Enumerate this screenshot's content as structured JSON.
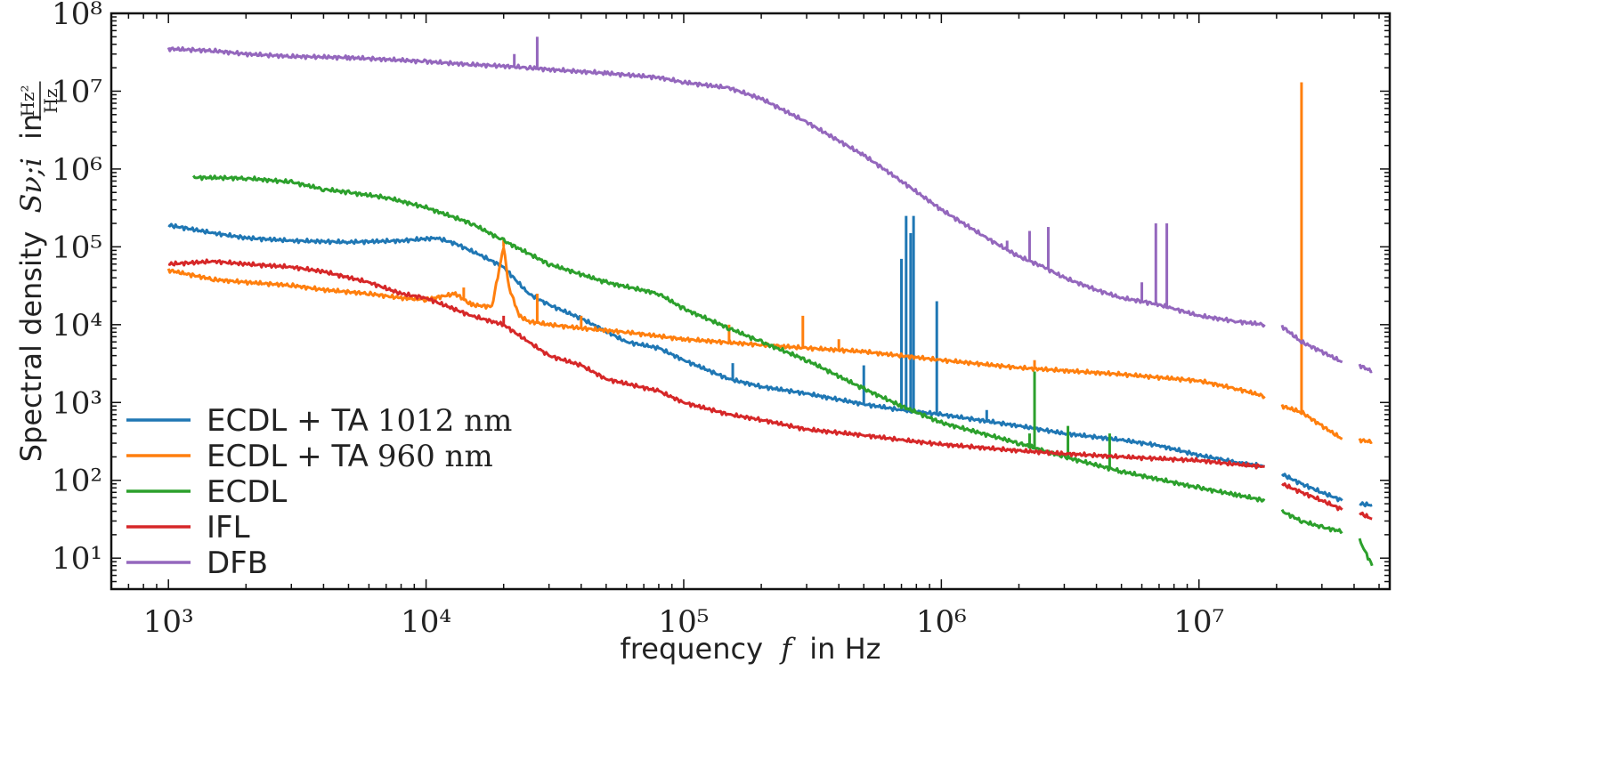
{
  "chart_data": {
    "type": "line",
    "title": "",
    "xlabel": "frequency",
    "xlabel_symbol": "f",
    "xlabel_unit": "in Hz",
    "ylabel": "Spectral density",
    "ylabel_symbol": "Sν;i",
    "ylabel_unit_prefix": "in",
    "ylabel_unit_num": "Hz²",
    "ylabel_unit_den": "Hz",
    "xscale": "log",
    "yscale": "log",
    "xlim": [
      600,
      55000000
    ],
    "ylim": [
      4,
      100000000
    ],
    "grid": false,
    "legend_position": "bottom-left",
    "x_ticks": [
      {
        "value": 1000,
        "label": "10³"
      },
      {
        "value": 10000,
        "label": "10⁴"
      },
      {
        "value": 100000,
        "label": "10⁵"
      },
      {
        "value": 1000000,
        "label": "10⁶"
      },
      {
        "value": 10000000,
        "label": "10⁷"
      }
    ],
    "y_ticks": [
      {
        "value": 10,
        "label": "10¹"
      },
      {
        "value": 100,
        "label": "10²"
      },
      {
        "value": 1000,
        "label": "10³"
      },
      {
        "value": 10000,
        "label": "10⁴"
      },
      {
        "value": 100000,
        "label": "10⁵"
      },
      {
        "value": 1000000,
        "label": "10⁶"
      },
      {
        "value": 10000000,
        "label": "10⁷"
      },
      {
        "value": 100000000,
        "label": "10⁸"
      }
    ],
    "series": [
      {
        "name": "ECDL + TA 1012 nm",
        "legend_text": "ECDL + TA",
        "legend_value": "1012 nm",
        "color": "#1f77b4",
        "segments": [
          [
            [
              1000,
              190000
            ],
            [
              1500,
              150000
            ],
            [
              2000,
              130000
            ],
            [
              3000,
              120000
            ],
            [
              5000,
              115000
            ],
            [
              8000,
              120000
            ],
            [
              11000,
              130000
            ],
            [
              13000,
              110000
            ],
            [
              16000,
              80000
            ],
            [
              20000,
              55000
            ],
            [
              25000,
              25000
            ],
            [
              30000,
              18000
            ],
            [
              40000,
              12000
            ],
            [
              60000,
              6000
            ],
            [
              80000,
              5000
            ],
            [
              100000,
              3500
            ],
            [
              150000,
              2000
            ],
            [
              200000,
              1600
            ],
            [
              300000,
              1300
            ],
            [
              500000,
              950
            ],
            [
              700000,
              800
            ],
            [
              1000000,
              700
            ],
            [
              2000000,
              500
            ],
            [
              3000000,
              400
            ],
            [
              5000000,
              330
            ],
            [
              7000000,
              280
            ],
            [
              10000000,
              210
            ],
            [
              14000000,
              170
            ],
            [
              18000000,
              150
            ]
          ],
          [
            [
              21000000,
              120
            ],
            [
              25000000,
              90
            ],
            [
              30000000,
              70
            ],
            [
              36000000,
              55
            ]
          ],
          [
            [
              42000000,
              50
            ],
            [
              47000000,
              48
            ]
          ]
        ],
        "spikes": [
          [
            500000,
            3000
          ],
          [
            700000,
            70000
          ],
          [
            730000,
            250000
          ],
          [
            760000,
            150000
          ],
          [
            780000,
            250000
          ],
          [
            960000,
            20000
          ],
          [
            155000,
            3200
          ],
          [
            1500000,
            800
          ]
        ]
      },
      {
        "name": "ECDL + TA 960 nm",
        "legend_text": "ECDL + TA",
        "legend_value": "960 nm",
        "color": "#ff7f0e",
        "segments": [
          [
            [
              1000,
              50000
            ],
            [
              1500,
              38000
            ],
            [
              2000,
              35000
            ],
            [
              3000,
              32000
            ],
            [
              4000,
              28000
            ],
            [
              6000,
              25000
            ],
            [
              8000,
              22000
            ],
            [
              10000,
              21000
            ],
            [
              13000,
              25000
            ],
            [
              15000,
              18000
            ],
            [
              18000,
              17000
            ],
            [
              20000,
              100000
            ],
            [
              21000,
              30000
            ],
            [
              23000,
              13000
            ],
            [
              25000,
              11000
            ],
            [
              30000,
              10000
            ],
            [
              40000,
              9000
            ],
            [
              60000,
              8000
            ],
            [
              100000,
              6500
            ],
            [
              200000,
              5500
            ],
            [
              300000,
              5000
            ],
            [
              500000,
              4500
            ],
            [
              1000000,
              3500
            ],
            [
              2000000,
              2800
            ],
            [
              5000000,
              2300
            ],
            [
              10000000,
              1900
            ],
            [
              14000000,
              1500
            ],
            [
              18000000,
              1200
            ]
          ],
          [
            [
              21000000,
              900
            ],
            [
              25000000,
              750
            ],
            [
              30000000,
              500
            ],
            [
              36000000,
              340
            ]
          ],
          [
            [
              42000000,
              330
            ],
            [
              47000000,
              310
            ]
          ]
        ],
        "spikes": [
          [
            14000,
            30000
          ],
          [
            20000,
            130000
          ],
          [
            27000,
            25000
          ],
          [
            40000,
            13000
          ],
          [
            150000,
            10000
          ],
          [
            290000,
            13000
          ],
          [
            400000,
            6500
          ],
          [
            2300000,
            3500
          ],
          [
            25000000,
            13000000
          ]
        ]
      },
      {
        "name": "ECDL",
        "legend_text": "ECDL",
        "legend_value": "",
        "color": "#2ca02c",
        "segments": [
          [
            [
              1250,
              780000
            ],
            [
              2000,
              760000
            ],
            [
              3000,
              680000
            ],
            [
              4000,
              550000
            ],
            [
              5000,
              500000
            ],
            [
              7000,
              430000
            ],
            [
              10000,
              320000
            ],
            [
              15000,
              200000
            ],
            [
              20000,
              120000
            ],
            [
              30000,
              60000
            ],
            [
              50000,
              35000
            ],
            [
              80000,
              25000
            ],
            [
              100000,
              16000
            ],
            [
              150000,
              9000
            ],
            [
              200000,
              6000
            ],
            [
              300000,
              3500
            ],
            [
              500000,
              1500
            ],
            [
              700000,
              900
            ],
            [
              1000000,
              550
            ],
            [
              2000000,
              300
            ],
            [
              3000000,
              200
            ],
            [
              5000000,
              130
            ],
            [
              10000000,
              80
            ],
            [
              14000000,
              65
            ],
            [
              18000000,
              55
            ]
          ],
          [
            [
              21000000,
              40
            ],
            [
              25000000,
              30
            ],
            [
              30000000,
              25
            ],
            [
              36000000,
              22
            ]
          ],
          [
            [
              42000000,
              17
            ],
            [
              47000000,
              8
            ]
          ]
        ],
        "spikes": [
          [
            2300000,
            2500
          ],
          [
            3100000,
            500
          ],
          [
            4500000,
            400
          ],
          [
            2200000,
            400
          ]
        ]
      },
      {
        "name": "IFL",
        "legend_text": "IFL",
        "legend_value": "",
        "color": "#d62728",
        "segments": [
          [
            [
              1000,
              60000
            ],
            [
              1500,
              65000
            ],
            [
              2000,
              60000
            ],
            [
              3000,
              55000
            ],
            [
              4000,
              48000
            ],
            [
              6000,
              35000
            ],
            [
              8000,
              25000
            ],
            [
              10000,
              22000
            ],
            [
              15000,
              13000
            ],
            [
              20000,
              10000
            ],
            [
              25000,
              6000
            ],
            [
              30000,
              4000
            ],
            [
              40000,
              3000
            ],
            [
              50000,
              2000
            ],
            [
              80000,
              1400
            ],
            [
              100000,
              1000
            ],
            [
              150000,
              700
            ],
            [
              200000,
              600
            ],
            [
              300000,
              450
            ],
            [
              500000,
              380
            ],
            [
              700000,
              330
            ],
            [
              1000000,
              290
            ],
            [
              2000000,
              240
            ],
            [
              3000000,
              220
            ],
            [
              5000000,
              200
            ],
            [
              10000000,
              180
            ],
            [
              14000000,
              160
            ],
            [
              18000000,
              150
            ]
          ],
          [
            [
              21000000,
              90
            ],
            [
              25000000,
              70
            ],
            [
              30000000,
              55
            ],
            [
              36000000,
              42
            ]
          ],
          [
            [
              42000000,
              38
            ],
            [
              47000000,
              32
            ]
          ]
        ],
        "spikes": [
          [
            20000,
            13000
          ]
        ]
      },
      {
        "name": "DFB",
        "legend_text": "DFB",
        "legend_value": "",
        "color": "#9467bd",
        "segments": [
          [
            [
              1000,
              35000000
            ],
            [
              1500,
              33000000
            ],
            [
              2000,
              30000000
            ],
            [
              3000,
              28000000
            ],
            [
              5000,
              27000000
            ],
            [
              8000,
              25000000
            ],
            [
              10000,
              24000000
            ],
            [
              15000,
              22000000
            ],
            [
              20000,
              21000000
            ],
            [
              25000,
              20000000
            ],
            [
              30000,
              19000000
            ],
            [
              50000,
              17000000
            ],
            [
              80000,
              15000000
            ],
            [
              100000,
              13000000
            ],
            [
              150000,
              11000000
            ],
            [
              200000,
              8000000
            ],
            [
              300000,
              4000000
            ],
            [
              500000,
              1500000
            ],
            [
              700000,
              700000
            ],
            [
              1000000,
              300000
            ],
            [
              1500000,
              130000
            ],
            [
              2000000,
              75000
            ],
            [
              2500000,
              55000
            ],
            [
              3000000,
              40000
            ],
            [
              4000000,
              28000
            ],
            [
              5000000,
              22000
            ],
            [
              6000000,
              20000
            ],
            [
              7000000,
              18000
            ],
            [
              8000000,
              16000
            ],
            [
              10000000,
              13000
            ],
            [
              14000000,
              11000
            ],
            [
              18000000,
              10000
            ]
          ],
          [
            [
              21000000,
              9500
            ],
            [
              25000000,
              6000
            ],
            [
              30000000,
              4500
            ],
            [
              36000000,
              3300
            ]
          ],
          [
            [
              42000000,
              3000
            ],
            [
              47000000,
              2500
            ]
          ]
        ],
        "spikes": [
          [
            22000,
            30000000
          ],
          [
            27000,
            50000000
          ],
          [
            1800000,
            120000
          ],
          [
            2200000,
            160000
          ],
          [
            2600000,
            180000
          ],
          [
            6800000,
            200000
          ],
          [
            7500000,
            200000
          ],
          [
            6000000,
            35000
          ],
          [
            31000000,
            4200
          ],
          [
            39000000,
            3800
          ]
        ]
      }
    ]
  }
}
